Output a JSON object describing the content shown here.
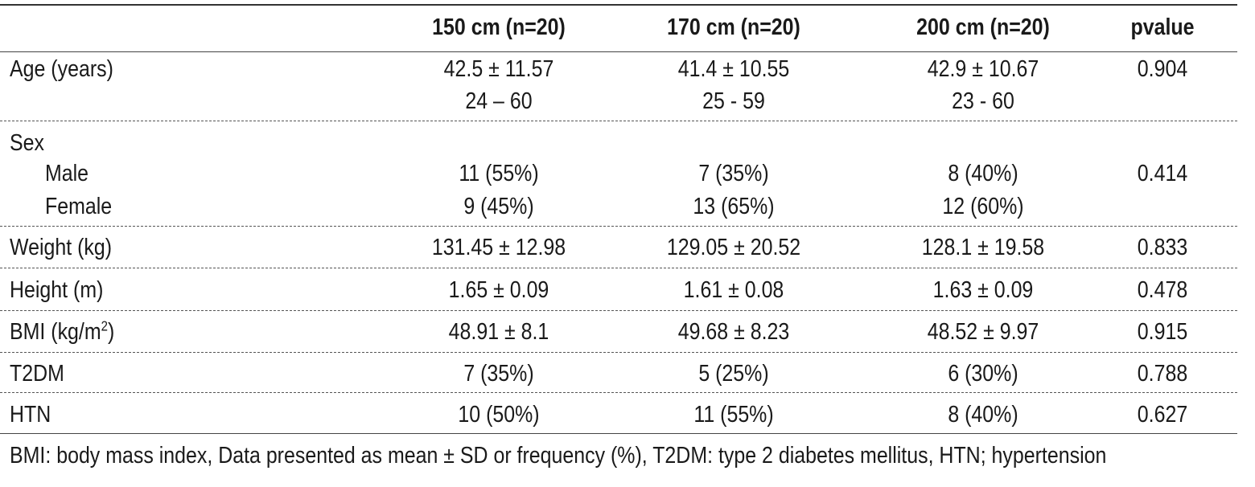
{
  "table": {
    "headers": [
      "",
      "150 cm (n=20)",
      "170 cm (n=20)",
      "200 cm (n=20)",
      "pvalue"
    ],
    "rows": [
      {
        "label": "Age (years)",
        "c1": [
          "42.5 ± 11.57",
          "24 – 60"
        ],
        "c2": [
          "41.4 ± 10.55",
          "25 - 59"
        ],
        "c3": [
          "42.9 ± 10.67",
          "23 - 60"
        ],
        "p": "0.904"
      },
      {
        "label": "Sex",
        "sub": [
          {
            "label": "Male",
            "c1": "11 (55%)",
            "c2": "7 (35%)",
            "c3": "8 (40%)",
            "p": "0.414"
          },
          {
            "label": "Female",
            "c1": "9 (45%)",
            "c2": "13 (65%)",
            "c3": "12 (60%)",
            "p": ""
          }
        ]
      },
      {
        "label": "Weight (kg)",
        "c1": "131.45 ± 12.98",
        "c2": "129.05 ± 20.52",
        "c3": "128.1 ± 19.58",
        "p": "0.833"
      },
      {
        "label": "Height (m)",
        "c1": "1.65 ± 0.09",
        "c2": "1.61 ± 0.08",
        "c3": "1.63 ± 0.09",
        "p": "0.478"
      },
      {
        "label": "BMI (kg/m",
        "label_sup": "2",
        "label_end": ")",
        "c1": "48.91 ± 8.1",
        "c2": "49.68 ± 8.23",
        "c3": "48.52 ± 9.97",
        "p": "0.915"
      },
      {
        "label": "T2DM",
        "c1": "7 (35%)",
        "c2": "5 (25%)",
        "c3": "6 (30%)",
        "p": "0.788"
      },
      {
        "label": "HTN",
        "c1": "10 (50%)",
        "c2": "11 (55%)",
        "c3": "8 (40%)",
        "p": "0.627"
      }
    ],
    "footnote": "BMI: body mass index, Data presented as mean ± SD or frequency (%), T2DM: type 2 diabetes mellitus, HTN; hypertension"
  }
}
